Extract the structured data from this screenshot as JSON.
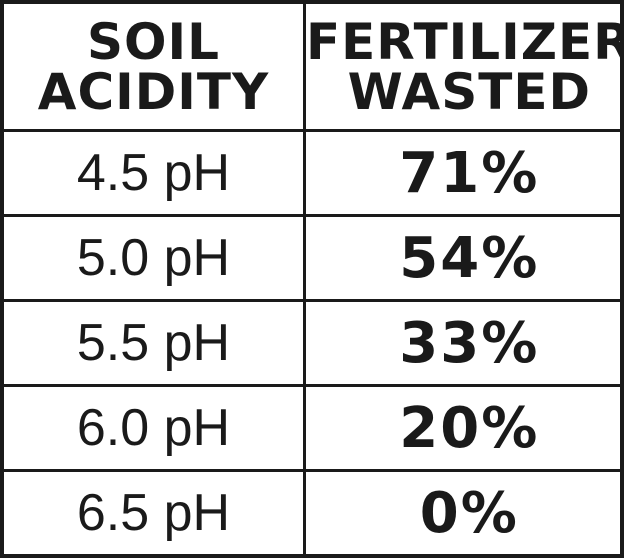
{
  "header": {
    "col1": [
      "SOIL",
      "ACIDITY"
    ],
    "col2": [
      "FERTILIZER",
      "WASTED"
    ]
  },
  "rows": [
    {
      "acidity": "4.5 pH",
      "wasted": "71%"
    },
    {
      "acidity": "5.0 pH",
      "wasted": "54%"
    },
    {
      "acidity": "5.5 pH",
      "wasted": "33%"
    },
    {
      "acidity": "6.0 pH",
      "wasted": "20%"
    },
    {
      "acidity": "6.5 pH",
      "wasted": "0%"
    }
  ]
}
